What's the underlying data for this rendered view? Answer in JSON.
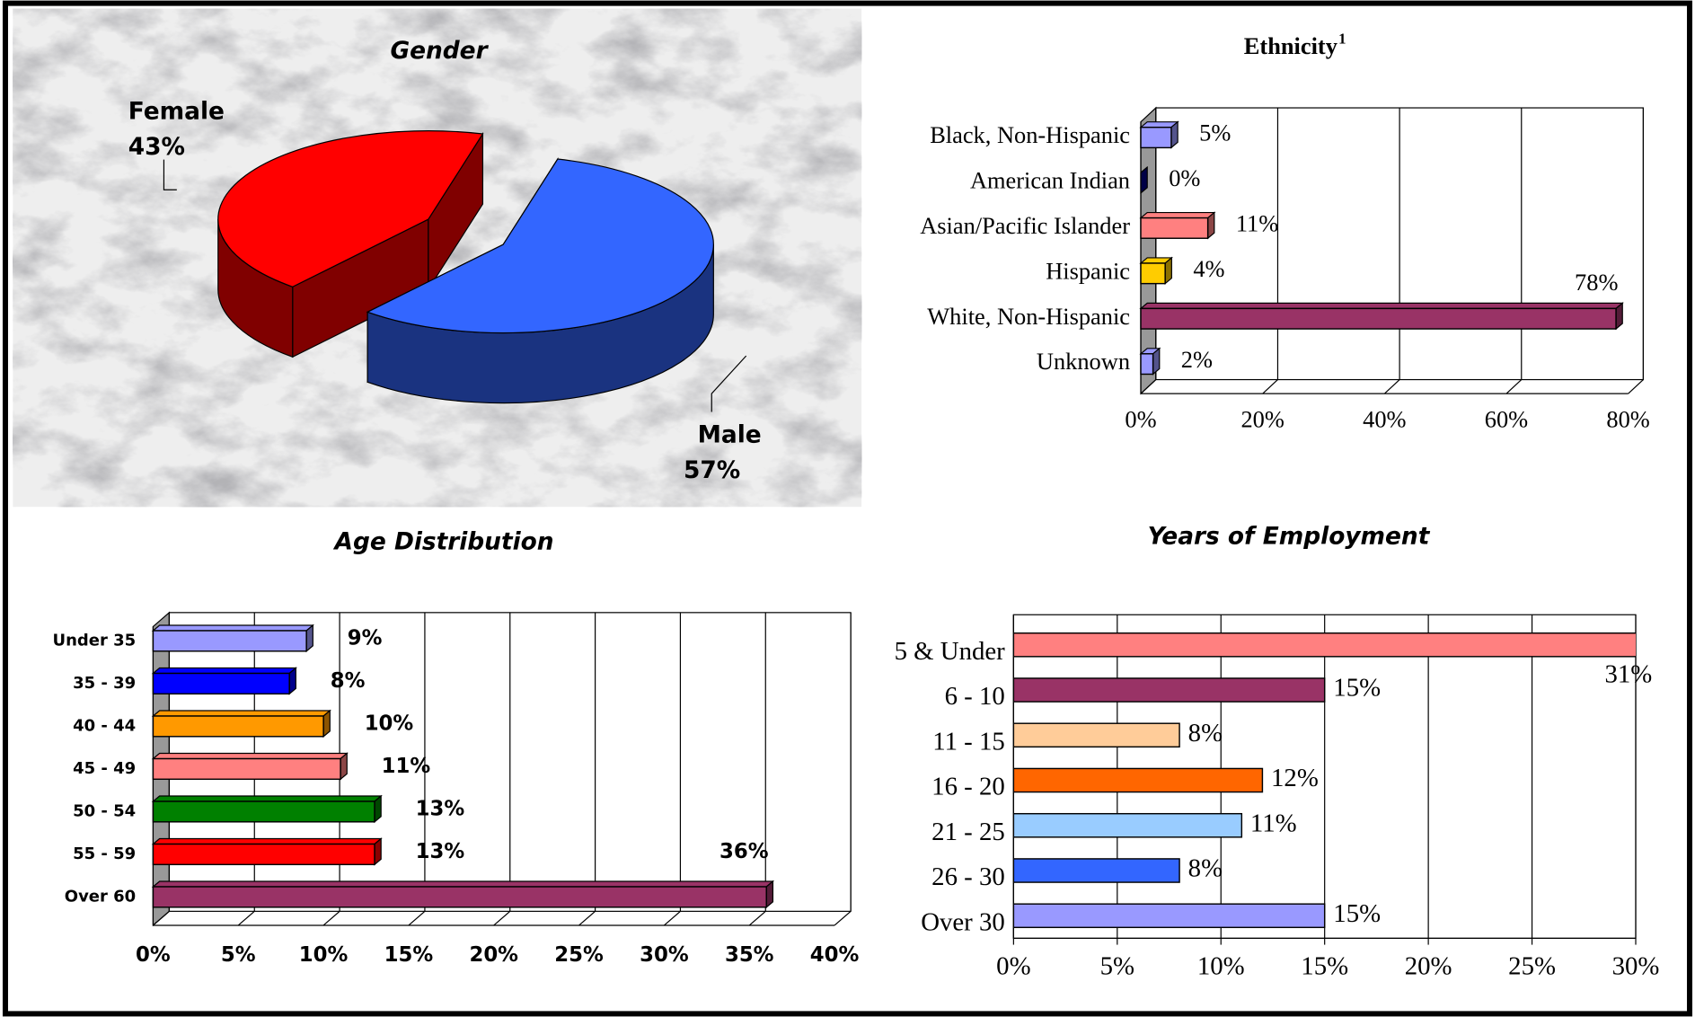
{
  "chart_data": [
    {
      "type": "pie",
      "title": "Gender",
      "categories": [
        "Female",
        "Male"
      ],
      "values": [
        43,
        57
      ],
      "value_labels": [
        "43%",
        "57%"
      ],
      "colors": [
        "#ff0000",
        "#3366ff"
      ],
      "side_colors": [
        "#800000",
        "#1a3380"
      ]
    },
    {
      "type": "bar",
      "orientation": "horizontal",
      "title": "Ethnicity",
      "title_superscript": "1",
      "categories": [
        "Black, Non-Hispanic",
        "American Indian",
        "Asian/Pacific Islander",
        "Hispanic",
        "White, Non-Hispanic",
        "Unknown"
      ],
      "values": [
        5,
        0,
        11,
        4,
        78,
        2
      ],
      "value_labels": [
        "5%",
        "0%",
        "11%",
        "4%",
        "78%",
        "2%"
      ],
      "colors": [
        "#9999ff",
        "#000080",
        "#ff8080",
        "#ffcc00",
        "#993366",
        "#9999ff"
      ],
      "xlim": [
        0,
        80
      ],
      "xticks": [
        {
          "value": 0,
          "label": "0%"
        },
        {
          "value": 20,
          "label": "20%"
        },
        {
          "value": 40,
          "label": "40%"
        },
        {
          "value": 60,
          "label": "60%"
        },
        {
          "value": 80,
          "label": "80%"
        }
      ],
      "grid": true
    },
    {
      "type": "bar",
      "orientation": "horizontal",
      "title": "Age Distribution",
      "categories": [
        "Under 35",
        "35 - 39",
        "40 - 44",
        "45 - 49",
        "50 - 54",
        "55 - 59",
        "Over 60"
      ],
      "values": [
        9,
        8,
        10,
        11,
        13,
        13,
        36
      ],
      "value_labels": [
        "9%",
        "8%",
        "10%",
        "11%",
        "13%",
        "13%",
        "36%"
      ],
      "colors": [
        "#9999ff",
        "#0000ff",
        "#ff9900",
        "#ff8080",
        "#008000",
        "#ff0000",
        "#993366"
      ],
      "xlim": [
        0,
        40
      ],
      "xticks": [
        {
          "value": 0,
          "label": "0%"
        },
        {
          "value": 5,
          "label": "5%"
        },
        {
          "value": 10,
          "label": "10%"
        },
        {
          "value": 15,
          "label": "15%"
        },
        {
          "value": 20,
          "label": "20%"
        },
        {
          "value": 25,
          "label": "25%"
        },
        {
          "value": 30,
          "label": "30%"
        },
        {
          "value": 35,
          "label": "35%"
        },
        {
          "value": 40,
          "label": "40%"
        }
      ],
      "grid": true
    },
    {
      "type": "bar",
      "orientation": "horizontal",
      "title": "Years of Employment",
      "categories": [
        "5 & Under",
        "6 - 10",
        "11 - 15",
        "16 - 20",
        "21 - 25",
        "26 - 30",
        "Over 30"
      ],
      "values": [
        31,
        15,
        8,
        12,
        11,
        8,
        15
      ],
      "value_labels": [
        "31%",
        "15%",
        "8%",
        "12%",
        "11%",
        "8%",
        "15%"
      ],
      "colors": [
        "#ff8080",
        "#993366",
        "#ffcc99",
        "#ff6600",
        "#99ccff",
        "#3366ff",
        "#9999ff"
      ],
      "xlim": [
        0,
        30
      ],
      "xticks": [
        {
          "value": 0,
          "label": "0%"
        },
        {
          "value": 5,
          "label": "5%"
        },
        {
          "value": 10,
          "label": "10%"
        },
        {
          "value": 15,
          "label": "15%"
        },
        {
          "value": 20,
          "label": "20%"
        },
        {
          "value": 25,
          "label": "25%"
        },
        {
          "value": 30,
          "label": "30%"
        }
      ],
      "grid": true
    }
  ]
}
